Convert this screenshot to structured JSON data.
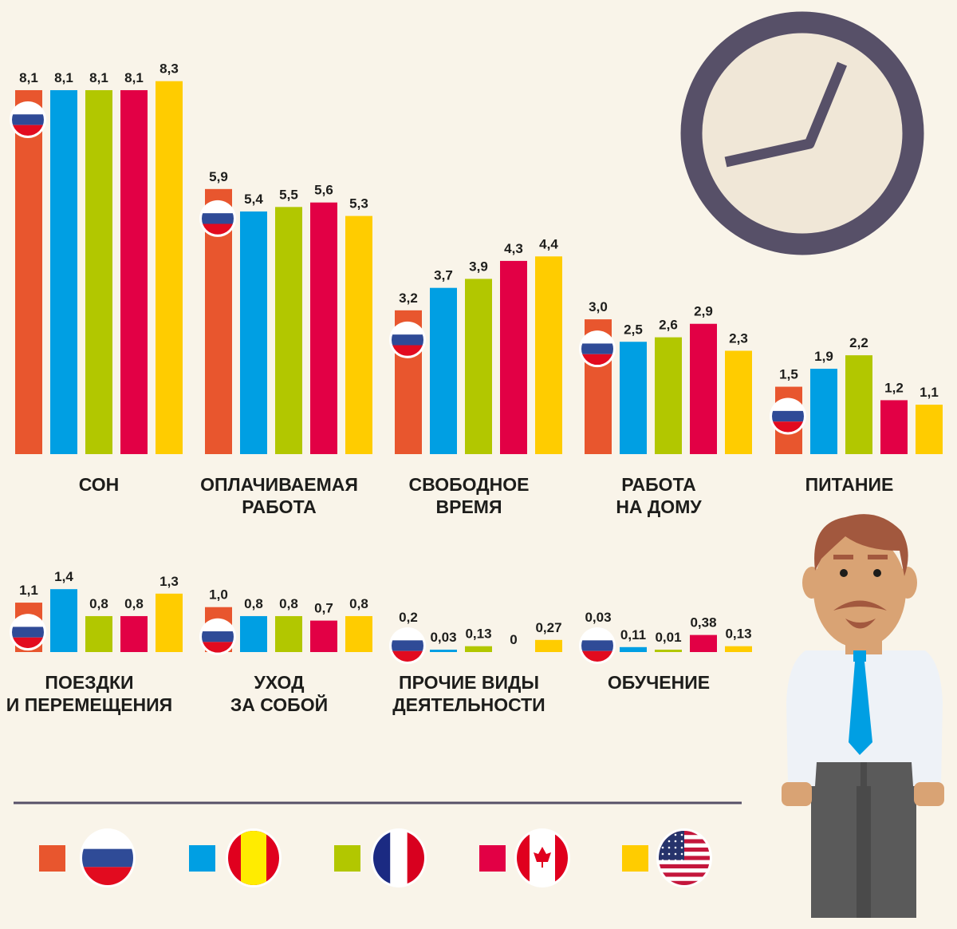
{
  "chart_data": {
    "type": "bar",
    "ylabel": "",
    "xlabel": "",
    "grid": false,
    "legend_placement": "bottom",
    "colors": [
      "#e8562e",
      "#009fe3",
      "#b2c700",
      "#e20045",
      "#ffcc00"
    ],
    "series_flags": [
      "russia-flag-icon",
      "spain-flag-icon",
      "france-flag-icon",
      "canada-flag-icon",
      "usa-flag-icon"
    ],
    "categories": [
      [
        "СОН"
      ],
      [
        "ОПЛАЧИВАЕМАЯ",
        "РАБОТА"
      ],
      [
        "СВОБОДНОЕ",
        "ВРЕМЯ"
      ],
      [
        "РАБОТА",
        "НА ДОМУ"
      ],
      [
        "ПИТАНИЕ"
      ],
      [
        "ПОЕЗДКИ",
        "И ПЕРЕМЕЩЕНИЯ"
      ],
      [
        "УХОД",
        "ЗА СОБОЙ"
      ],
      [
        "ПРОЧИЕ ВИДЫ",
        "ДЕЯТЕЛЬНОСТИ"
      ],
      [
        "ОБУЧЕНИЕ"
      ]
    ],
    "values": [
      [
        8.1,
        8.1,
        8.1,
        8.1,
        8.3
      ],
      [
        5.9,
        5.4,
        5.5,
        5.6,
        5.3
      ],
      [
        3.2,
        3.7,
        3.9,
        4.3,
        4.4
      ],
      [
        3.0,
        2.5,
        2.6,
        2.9,
        2.3
      ],
      [
        1.5,
        1.9,
        2.2,
        1.2,
        1.1
      ],
      [
        1.1,
        1.4,
        0.8,
        0.8,
        1.3
      ],
      [
        1.0,
        0.8,
        0.8,
        0.7,
        0.8
      ],
      [
        0.2,
        0.03,
        0.13,
        0,
        0.27
      ],
      [
        0.03,
        0.11,
        0.01,
        0.38,
        0.13
      ]
    ],
    "labels": [
      [
        "8,1",
        "8,1",
        "8,1",
        "8,1",
        "8,3"
      ],
      [
        "5,9",
        "5,4",
        "5,5",
        "5,6",
        "5,3"
      ],
      [
        "3,2",
        "3,7",
        "3,9",
        "4,3",
        "4,4"
      ],
      [
        "3,0",
        "2,5",
        "2,6",
        "2,9",
        "2,3"
      ],
      [
        "1,5",
        "1,9",
        "2,2",
        "1,2",
        "1,1"
      ],
      [
        "1,1",
        "1,4",
        "0,8",
        "0,8",
        "1,3"
      ],
      [
        "1,0",
        "0,8",
        "0,8",
        "0,7",
        "0,8"
      ],
      [
        "0,2",
        "0,03",
        "0,13",
        "0",
        "0,27"
      ],
      [
        "0,03",
        "0,11",
        "0,01",
        "0,38",
        "0,13"
      ]
    ]
  },
  "decor": {
    "clock_icon": "clock-icon",
    "man_icon": "businessman-illustration",
    "clock_color": "#575068",
    "background": "#f9f4e9"
  }
}
